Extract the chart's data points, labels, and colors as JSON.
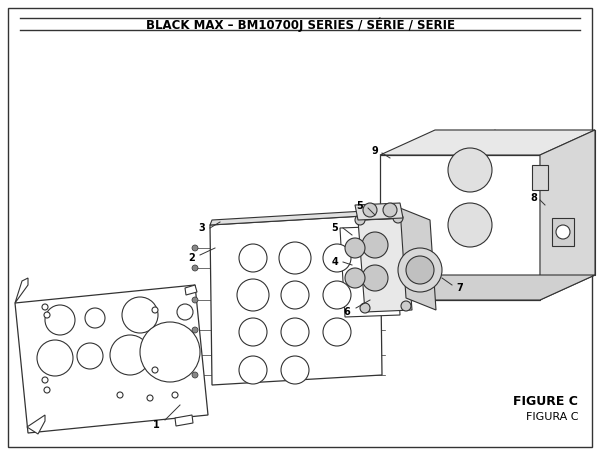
{
  "title": "BLACK MAX – BM10700J SERIES / SÉRIE / SERIE",
  "title_fontsize": 8.5,
  "title_fontweight": "bold",
  "figure_c_label": "FIGURE C",
  "figura_c_label": "FIGURA C",
  "background_color": "#ffffff",
  "border_color": "#333333",
  "line_color": "#333333",
  "fig_width": 6.0,
  "fig_height": 4.55,
  "dpi": 100
}
